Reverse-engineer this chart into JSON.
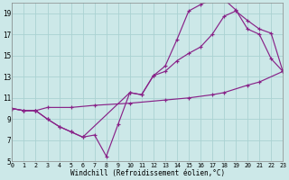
{
  "bg_color": "#cce8e8",
  "line_color": "#882288",
  "grid_color": "#aad2d2",
  "xlabel": "Windchill (Refroidissement éolien,°C)",
  "xlim": [
    0,
    23
  ],
  "ylim": [
    5,
    20
  ],
  "yticks": [
    5,
    7,
    9,
    11,
    13,
    15,
    17,
    19
  ],
  "xticks": [
    0,
    1,
    2,
    3,
    4,
    5,
    6,
    7,
    8,
    9,
    10,
    11,
    12,
    13,
    14,
    15,
    16,
    17,
    18,
    19,
    20,
    21,
    22,
    23
  ],
  "line1_x": [
    0,
    1,
    2,
    3,
    4,
    5,
    6,
    7,
    8,
    9,
    10,
    11,
    12,
    13,
    14,
    15,
    16,
    17,
    18,
    19,
    20,
    21,
    22,
    23
  ],
  "line1_y": [
    10.0,
    9.8,
    9.8,
    9.0,
    8.3,
    7.8,
    7.3,
    7.5,
    5.5,
    8.5,
    11.5,
    11.3,
    13.1,
    14.0,
    16.5,
    19.2,
    19.8,
    20.3,
    20.3,
    19.3,
    17.5,
    17.0,
    14.7,
    13.5
  ],
  "line2_x": [
    0,
    1,
    2,
    3,
    4,
    5,
    6,
    10,
    11,
    12,
    13,
    14,
    15,
    16,
    17,
    18,
    19,
    20,
    21,
    22,
    23
  ],
  "line2_y": [
    10.0,
    9.8,
    9.8,
    9.0,
    8.3,
    7.8,
    7.3,
    11.5,
    11.3,
    13.1,
    13.5,
    14.5,
    15.2,
    15.8,
    17.0,
    18.7,
    19.2,
    18.3,
    17.5,
    17.1,
    13.5
  ],
  "line3_x": [
    0,
    1,
    2,
    3,
    5,
    7,
    10,
    13,
    15,
    17,
    18,
    20,
    21,
    23
  ],
  "line3_y": [
    10.0,
    9.8,
    9.8,
    10.1,
    10.1,
    10.3,
    10.5,
    10.8,
    11.0,
    11.3,
    11.5,
    12.2,
    12.5,
    13.5
  ]
}
